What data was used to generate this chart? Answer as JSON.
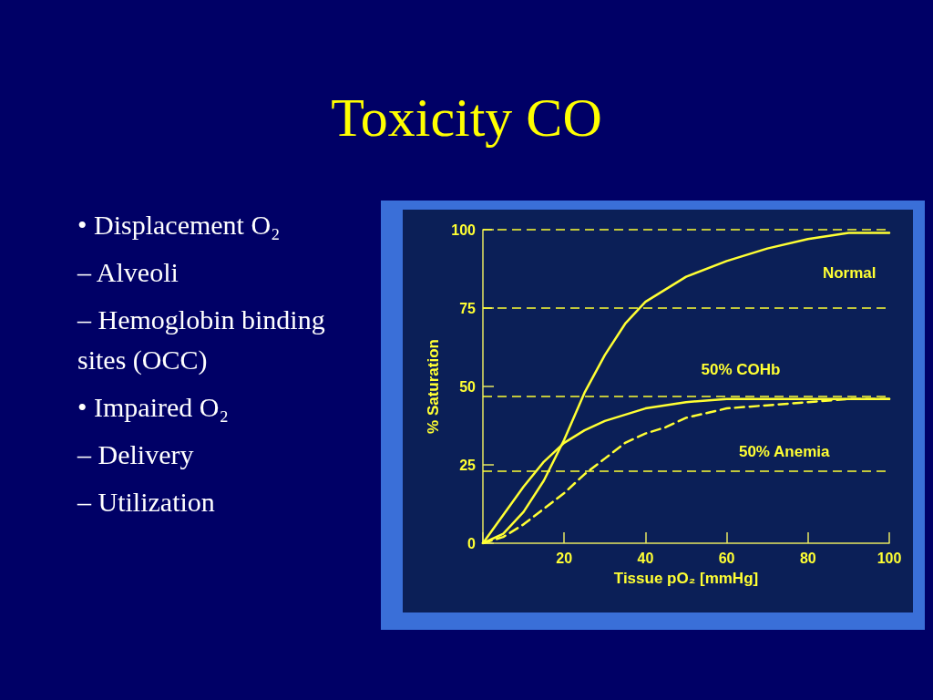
{
  "chart_data": {
    "type": "line",
    "title": "Toxicity CO",
    "xlabel": "Tissue pO₂ [mmHg]",
    "ylabel": "% Saturation",
    "annotations": [
      "• Displacement O₂",
      "– Alveoli",
      "– Hemoglobin binding sites (OCC)",
      "• Impaired O₂",
      "– Delivery",
      "– Utilization"
    ],
    "series": [
      {
        "name": "Normal",
        "color": "#ffff33",
        "line_style": "solid",
        "x": [
          0,
          5,
          10,
          15,
          20,
          25,
          30,
          35,
          40,
          50,
          60,
          70,
          80,
          90,
          100
        ],
        "values": [
          0,
          3,
          10,
          20,
          33,
          48,
          60,
          70,
          77,
          85,
          90,
          94,
          97,
          99,
          99
        ]
      },
      {
        "name": "50% COHb",
        "color": "#ffff33",
        "line_style": "solid",
        "x": [
          0,
          5,
          10,
          15,
          20,
          25,
          30,
          40,
          50,
          60,
          80,
          100
        ],
        "values": [
          0,
          9,
          18,
          26,
          32,
          36,
          39,
          43,
          45,
          46,
          46,
          46
        ]
      },
      {
        "name": "50% Anemia",
        "color": "#ffff33",
        "line_style": "dashed",
        "x": [
          0,
          5,
          10,
          15,
          20,
          25,
          30,
          35,
          40,
          45,
          50,
          60,
          70,
          80,
          90,
          100
        ],
        "values": [
          0,
          2,
          6,
          11,
          16,
          22,
          27,
          32,
          35,
          37,
          40,
          43,
          44,
          45,
          46,
          46
        ]
      }
    ],
    "ref_lines": [
      {
        "axis": "y",
        "value": 100,
        "color": "#ffff33",
        "line_style": "dashed"
      },
      {
        "axis": "y",
        "value": 75,
        "color": "#ffff33",
        "line_style": "dashed"
      },
      {
        "axis": "y",
        "value": 47,
        "color": "#ffff33",
        "line_style": "dashed"
      },
      {
        "axis": "y",
        "value": 23,
        "color": "#ffff33",
        "line_style": "dashed"
      }
    ],
    "xlim": [
      0,
      100
    ],
    "xticks": [
      {
        "value": 0,
        "label": null
      },
      20,
      40,
      60,
      80,
      100
    ],
    "ylim": [
      0,
      100
    ],
    "yticks": [
      0,
      25,
      50,
      75,
      100
    ],
    "grid": false,
    "legend": false,
    "marker": "none"
  }
}
